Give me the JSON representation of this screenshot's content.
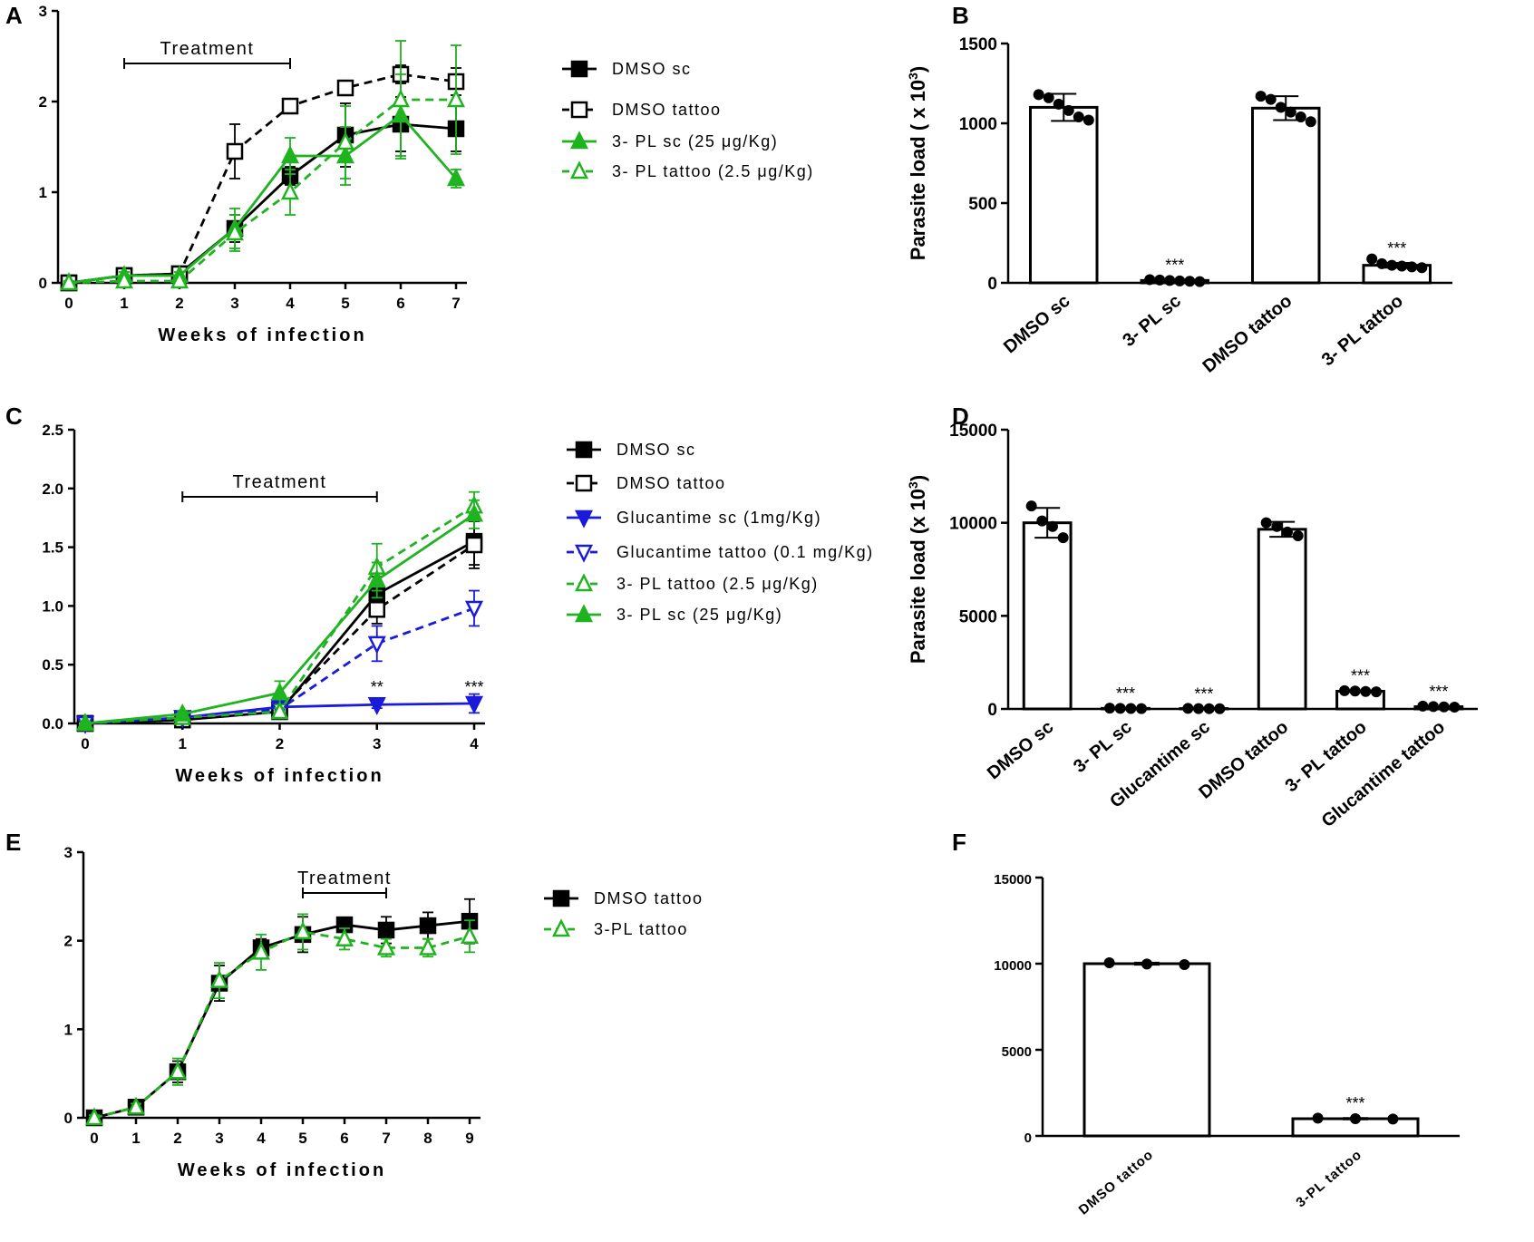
{
  "colors": {
    "black": "#000000",
    "green": "#1fb31f",
    "blue": "#1a1adb"
  },
  "chart_data": [
    {
      "panel": "A",
      "type": "line",
      "xlabel": "Weeks of infection",
      "ylabel": "",
      "ylim": [
        0,
        3
      ],
      "yticks": [
        0,
        1,
        2,
        3
      ],
      "xlim": [
        0,
        7
      ],
      "xticks": [
        0,
        1,
        2,
        3,
        4,
        5,
        6,
        7
      ],
      "treatment": {
        "label": "Treatment",
        "from": 1,
        "to": 4
      },
      "x": [
        0,
        1,
        2,
        3,
        4,
        5,
        6,
        7
      ],
      "series": [
        {
          "name": "DMSO sc",
          "color": "black",
          "dashed": false,
          "marker": "square-filled",
          "values": [
            0,
            0.08,
            0.1,
            0.6,
            1.18,
            1.63,
            1.75,
            1.7
          ],
          "errors": [
            0.02,
            0.04,
            0.05,
            0.15,
            0.1,
            0.35,
            0.3,
            0.25
          ]
        },
        {
          "name": "DMSO tattoo",
          "color": "black",
          "dashed": true,
          "marker": "square-open",
          "values": [
            0,
            0.08,
            0.1,
            1.45,
            1.95,
            2.15,
            2.3,
            2.22
          ],
          "errors": [
            0.02,
            0.04,
            0.05,
            0.3,
            0.08,
            0.06,
            0.1,
            0.15
          ]
        },
        {
          "name": "3- PL sc (25 μg/Kg)",
          "color": "green",
          "dashed": false,
          "marker": "triangle-filled",
          "values": [
            0,
            0.08,
            0.08,
            0.6,
            1.4,
            1.4,
            1.85,
            1.15
          ],
          "errors": [
            0.02,
            0.04,
            0.04,
            0.22,
            0.2,
            0.32,
            0.45,
            0.1
          ]
        },
        {
          "name": "3- PL tattoo (2.5 μg/Kg)",
          "color": "green",
          "dashed": true,
          "marker": "triangle-open",
          "values": [
            0,
            0.02,
            0.02,
            0.55,
            1.0,
            1.55,
            2.02,
            2.02
          ],
          "errors": [
            0.02,
            0.03,
            0.03,
            0.2,
            0.25,
            0.4,
            0.65,
            0.6
          ]
        }
      ]
    },
    {
      "panel": "B",
      "type": "bar",
      "ylabel": "Parasite load ( x 10",
      "ylabel_exp": "3",
      "ylabel_close": ")",
      "ylim": [
        0,
        1500
      ],
      "yticks": [
        0,
        500,
        1000,
        1500
      ],
      "categories": [
        "DMSO sc",
        "3- PL sc",
        "DMSO tattoo",
        "3- PL tattoo"
      ],
      "values": [
        1100,
        15,
        1095,
        110
      ],
      "errors": [
        85,
        5,
        75,
        15
      ],
      "points": [
        [
          1180,
          1160,
          1120,
          1080,
          1040,
          1020
        ],
        [
          20,
          18,
          15,
          12,
          10,
          8
        ],
        [
          1170,
          1150,
          1100,
          1070,
          1040,
          1010
        ],
        [
          150,
          120,
          110,
          105,
          100,
          95
        ]
      ],
      "significance": [
        "",
        "***",
        "",
        "***"
      ]
    },
    {
      "panel": "C",
      "type": "line",
      "xlabel": "Weeks of infection",
      "ylabel": "",
      "ylim": [
        0,
        2.5
      ],
      "yticks": [
        "0.0",
        "0.5",
        "1.0",
        "1.5",
        "2.0",
        "2.5"
      ],
      "xlim": [
        0,
        4
      ],
      "xticks": [
        0,
        1,
        2,
        3,
        4
      ],
      "treatment": {
        "label": "Treatment",
        "from": 1,
        "to": 3
      },
      "x": [
        0,
        1,
        2,
        3,
        4
      ],
      "series": [
        {
          "name": "DMSO sc",
          "color": "black",
          "dashed": false,
          "marker": "square-filled",
          "values": [
            0,
            0.03,
            0.1,
            1.1,
            1.55
          ],
          "errors": [
            0.02,
            0.02,
            0.03,
            0.15,
            0.2
          ]
        },
        {
          "name": "DMSO tattoo",
          "color": "black",
          "dashed": true,
          "marker": "square-open",
          "values": [
            0,
            0.03,
            0.12,
            0.97,
            1.52
          ],
          "errors": [
            0.02,
            0.02,
            0.03,
            0.12,
            0.2
          ]
        },
        {
          "name": "Glucantime sc (1mg/Kg)",
          "color": "blue",
          "dashed": false,
          "marker": "tri-down-filled",
          "values": [
            0,
            0.05,
            0.14,
            0.16,
            0.17
          ],
          "errors": [
            0.02,
            0.02,
            0.03,
            0.03,
            0.08
          ]
        },
        {
          "name": "Glucantime tattoo (0.1 mg/Kg)",
          "color": "blue",
          "dashed": true,
          "marker": "tri-down-open",
          "values": [
            0,
            0.05,
            0.12,
            0.68,
            0.98
          ],
          "errors": [
            0.02,
            0.02,
            0.03,
            0.15,
            0.15
          ]
        },
        {
          "name": "3- PL tattoo (2.5 μg/Kg)",
          "color": "green",
          "dashed": true,
          "marker": "triangle-open",
          "values": [
            0,
            0.05,
            0.1,
            1.33,
            1.85
          ],
          "errors": [
            0.02,
            0.02,
            0.03,
            0.2,
            0.12
          ]
        },
        {
          "name": "3- PL sc (25 μg/Kg)",
          "color": "green",
          "dashed": false,
          "marker": "triangle-filled",
          "values": [
            0,
            0.08,
            0.26,
            1.22,
            1.78
          ],
          "errors": [
            0.02,
            0.03,
            0.1,
            0.15,
            0.12
          ]
        }
      ],
      "annotations": [
        {
          "x": 3,
          "text": "**"
        },
        {
          "x": 4,
          "text": "***"
        }
      ]
    },
    {
      "panel": "D",
      "type": "bar",
      "ylabel": "Parasite load (x 10",
      "ylabel_exp": "3",
      "ylabel_close": ")",
      "ylim": [
        0,
        15000
      ],
      "yticks": [
        0,
        5000,
        10000,
        15000
      ],
      "categories": [
        "DMSO sc",
        "3- PL sc",
        "Glucantime sc",
        "DMSO tattoo",
        "3- PL tattoo",
        "Glucantime tattoo"
      ],
      "values": [
        10000,
        30,
        20,
        9650,
        950,
        120
      ],
      "errors": [
        800,
        10,
        10,
        400,
        40,
        20
      ],
      "points": [
        [
          10900,
          10100,
          9800,
          9200
        ],
        [
          40,
          30,
          25,
          20
        ],
        [
          30,
          20,
          15,
          10
        ],
        [
          10000,
          9800,
          9500,
          9300
        ],
        [
          980,
          960,
          940,
          920
        ],
        [
          150,
          130,
          110,
          100
        ]
      ],
      "significance": [
        "",
        "***",
        "***",
        "",
        "***",
        "***"
      ]
    },
    {
      "panel": "E",
      "type": "line",
      "xlabel": "Weeks of infection",
      "ylabel": "",
      "ylim": [
        0,
        3
      ],
      "yticks": [
        0,
        1,
        2,
        3
      ],
      "xlim": [
        0,
        9
      ],
      "xticks": [
        0,
        1,
        2,
        3,
        4,
        5,
        6,
        7,
        8,
        9
      ],
      "treatment": {
        "label": "Treatment",
        "from": 5,
        "to": 7
      },
      "x": [
        0,
        1,
        2,
        3,
        4,
        5,
        6,
        7,
        8,
        9
      ],
      "series": [
        {
          "name": "DMSO tattoo",
          "color": "black",
          "dashed": false,
          "marker": "square-filled",
          "values": [
            0,
            0.12,
            0.52,
            1.52,
            1.92,
            2.07,
            2.18,
            2.12,
            2.17,
            2.22
          ],
          "errors": [
            0.03,
            0.04,
            0.12,
            0.2,
            0.1,
            0.2,
            0.05,
            0.15,
            0.15,
            0.25
          ]
        },
        {
          "name": "3-PL tattoo",
          "color": "green",
          "dashed": true,
          "marker": "triangle-open",
          "values": [
            0,
            0.12,
            0.52,
            1.55,
            1.87,
            2.1,
            2.02,
            1.92,
            1.92,
            2.05
          ],
          "errors": [
            0.03,
            0.04,
            0.15,
            0.2,
            0.2,
            0.2,
            0.12,
            0.1,
            0.1,
            0.18
          ]
        }
      ]
    },
    {
      "panel": "F",
      "type": "bar",
      "ylabel": "",
      "ylim": [
        0,
        15000
      ],
      "yticks": [
        0,
        5000,
        10000,
        15000
      ],
      "categories": [
        "DMSO tattoo",
        "3-PL tattoo"
      ],
      "values": [
        10000,
        1000
      ],
      "errors": [
        60,
        40
      ],
      "points": [
        [
          10050,
          9980,
          9950
        ],
        [
          1030,
          1000,
          980
        ]
      ],
      "significance": [
        "",
        "***"
      ]
    }
  ]
}
